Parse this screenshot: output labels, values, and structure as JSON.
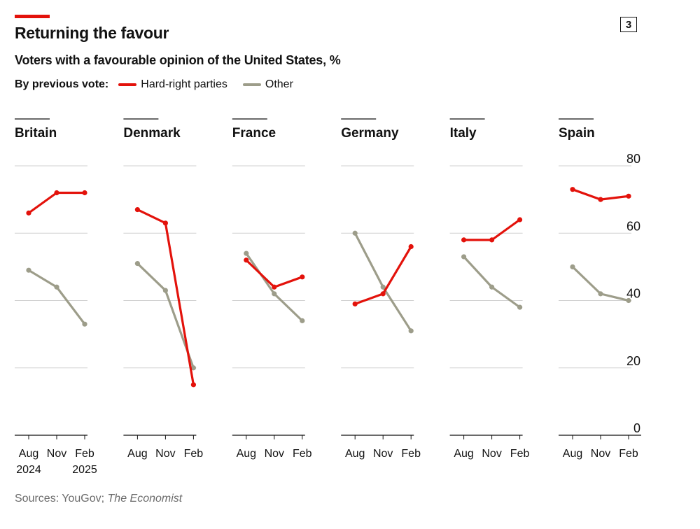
{
  "header": {
    "title": "Returning the favour",
    "subtitle": "Voters with a favourable opinion of the United States, %",
    "chart_number": "3"
  },
  "legend": {
    "title": "By previous vote:",
    "items": [
      {
        "label": "Hard-right parties",
        "color": "#e3120b"
      },
      {
        "label": "Other",
        "color": "#9d9d8a"
      }
    ]
  },
  "source": {
    "prefix": "Sources: YouGov; ",
    "italic": "The Economist"
  },
  "chart_data": {
    "type": "line",
    "x": [
      "Aug",
      "Nov",
      "Feb"
    ],
    "year_labels": [
      "2024",
      "",
      "2025"
    ],
    "ylim": [
      0,
      80
    ],
    "yticks": [
      0,
      20,
      40,
      60,
      80
    ],
    "grid": true,
    "legend_position": "top-left",
    "panels": [
      {
        "name": "Britain",
        "series": [
          {
            "name": "Hard-right parties",
            "values": [
              66,
              72,
              72
            ]
          },
          {
            "name": "Other",
            "values": [
              49,
              44,
              33
            ]
          }
        ]
      },
      {
        "name": "Denmark",
        "series": [
          {
            "name": "Hard-right parties",
            "values": [
              67,
              63,
              15
            ]
          },
          {
            "name": "Other",
            "values": [
              51,
              43,
              20
            ]
          }
        ]
      },
      {
        "name": "France",
        "series": [
          {
            "name": "Hard-right parties",
            "values": [
              52,
              44,
              47
            ]
          },
          {
            "name": "Other",
            "values": [
              54,
              42,
              34
            ]
          }
        ]
      },
      {
        "name": "Germany",
        "series": [
          {
            "name": "Hard-right parties",
            "values": [
              39,
              42,
              56
            ]
          },
          {
            "name": "Other",
            "values": [
              60,
              44,
              31
            ]
          }
        ]
      },
      {
        "name": "Italy",
        "series": [
          {
            "name": "Hard-right parties",
            "values": [
              58,
              58,
              64
            ]
          },
          {
            "name": "Other",
            "values": [
              53,
              44,
              38
            ]
          }
        ]
      },
      {
        "name": "Spain",
        "series": [
          {
            "name": "Hard-right parties",
            "values": [
              73,
              70,
              71
            ]
          },
          {
            "name": "Other",
            "values": [
              50,
              42,
              40
            ]
          }
        ]
      }
    ]
  }
}
